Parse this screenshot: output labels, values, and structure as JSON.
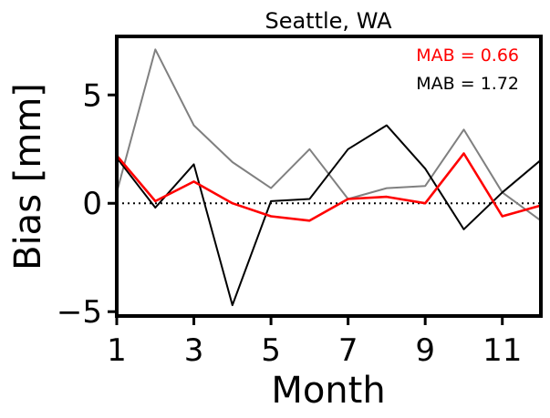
{
  "chart_data": {
    "type": "line",
    "title": "Seattle, WA",
    "xlabel": "Month",
    "ylabel": "Bias [mm]",
    "xlim": [
      1,
      12
    ],
    "ylim": [
      -5.2,
      7.7
    ],
    "xticks": [
      1,
      3,
      5,
      7,
      9,
      11
    ],
    "yticks": [
      -5,
      0,
      5
    ],
    "ytick_labels": [
      "−5",
      "0",
      "5"
    ],
    "x": [
      1,
      2,
      3,
      4,
      5,
      6,
      7,
      8,
      9,
      10,
      11,
      12
    ],
    "series": [
      {
        "color": "#808080",
        "width": 2,
        "values": [
          0.5,
          7.1,
          3.6,
          1.9,
          0.7,
          2.5,
          0.2,
          0.7,
          0.8,
          3.4,
          0.5,
          -0.8
        ]
      },
      {
        "color": "#000000",
        "width": 2,
        "values": [
          2.1,
          -0.2,
          1.8,
          -4.7,
          0.1,
          0.2,
          2.5,
          3.6,
          1.6,
          -1.2,
          0.5,
          2.0
        ]
      },
      {
        "color": "#ff0000",
        "width": 2.6,
        "values": [
          2.2,
          0.1,
          1.0,
          0.0,
          -0.6,
          -0.8,
          0.2,
          0.3,
          0.0,
          2.3,
          -0.6,
          -0.1
        ]
      }
    ],
    "reference_line": {
      "y": 0,
      "style": "dotted",
      "color": "#000000"
    },
    "annotations": [
      {
        "text": "MAB = 0.66",
        "color": "#ff0000"
      },
      {
        "text": "MAB = 1.72",
        "color": "#000000"
      }
    ]
  }
}
